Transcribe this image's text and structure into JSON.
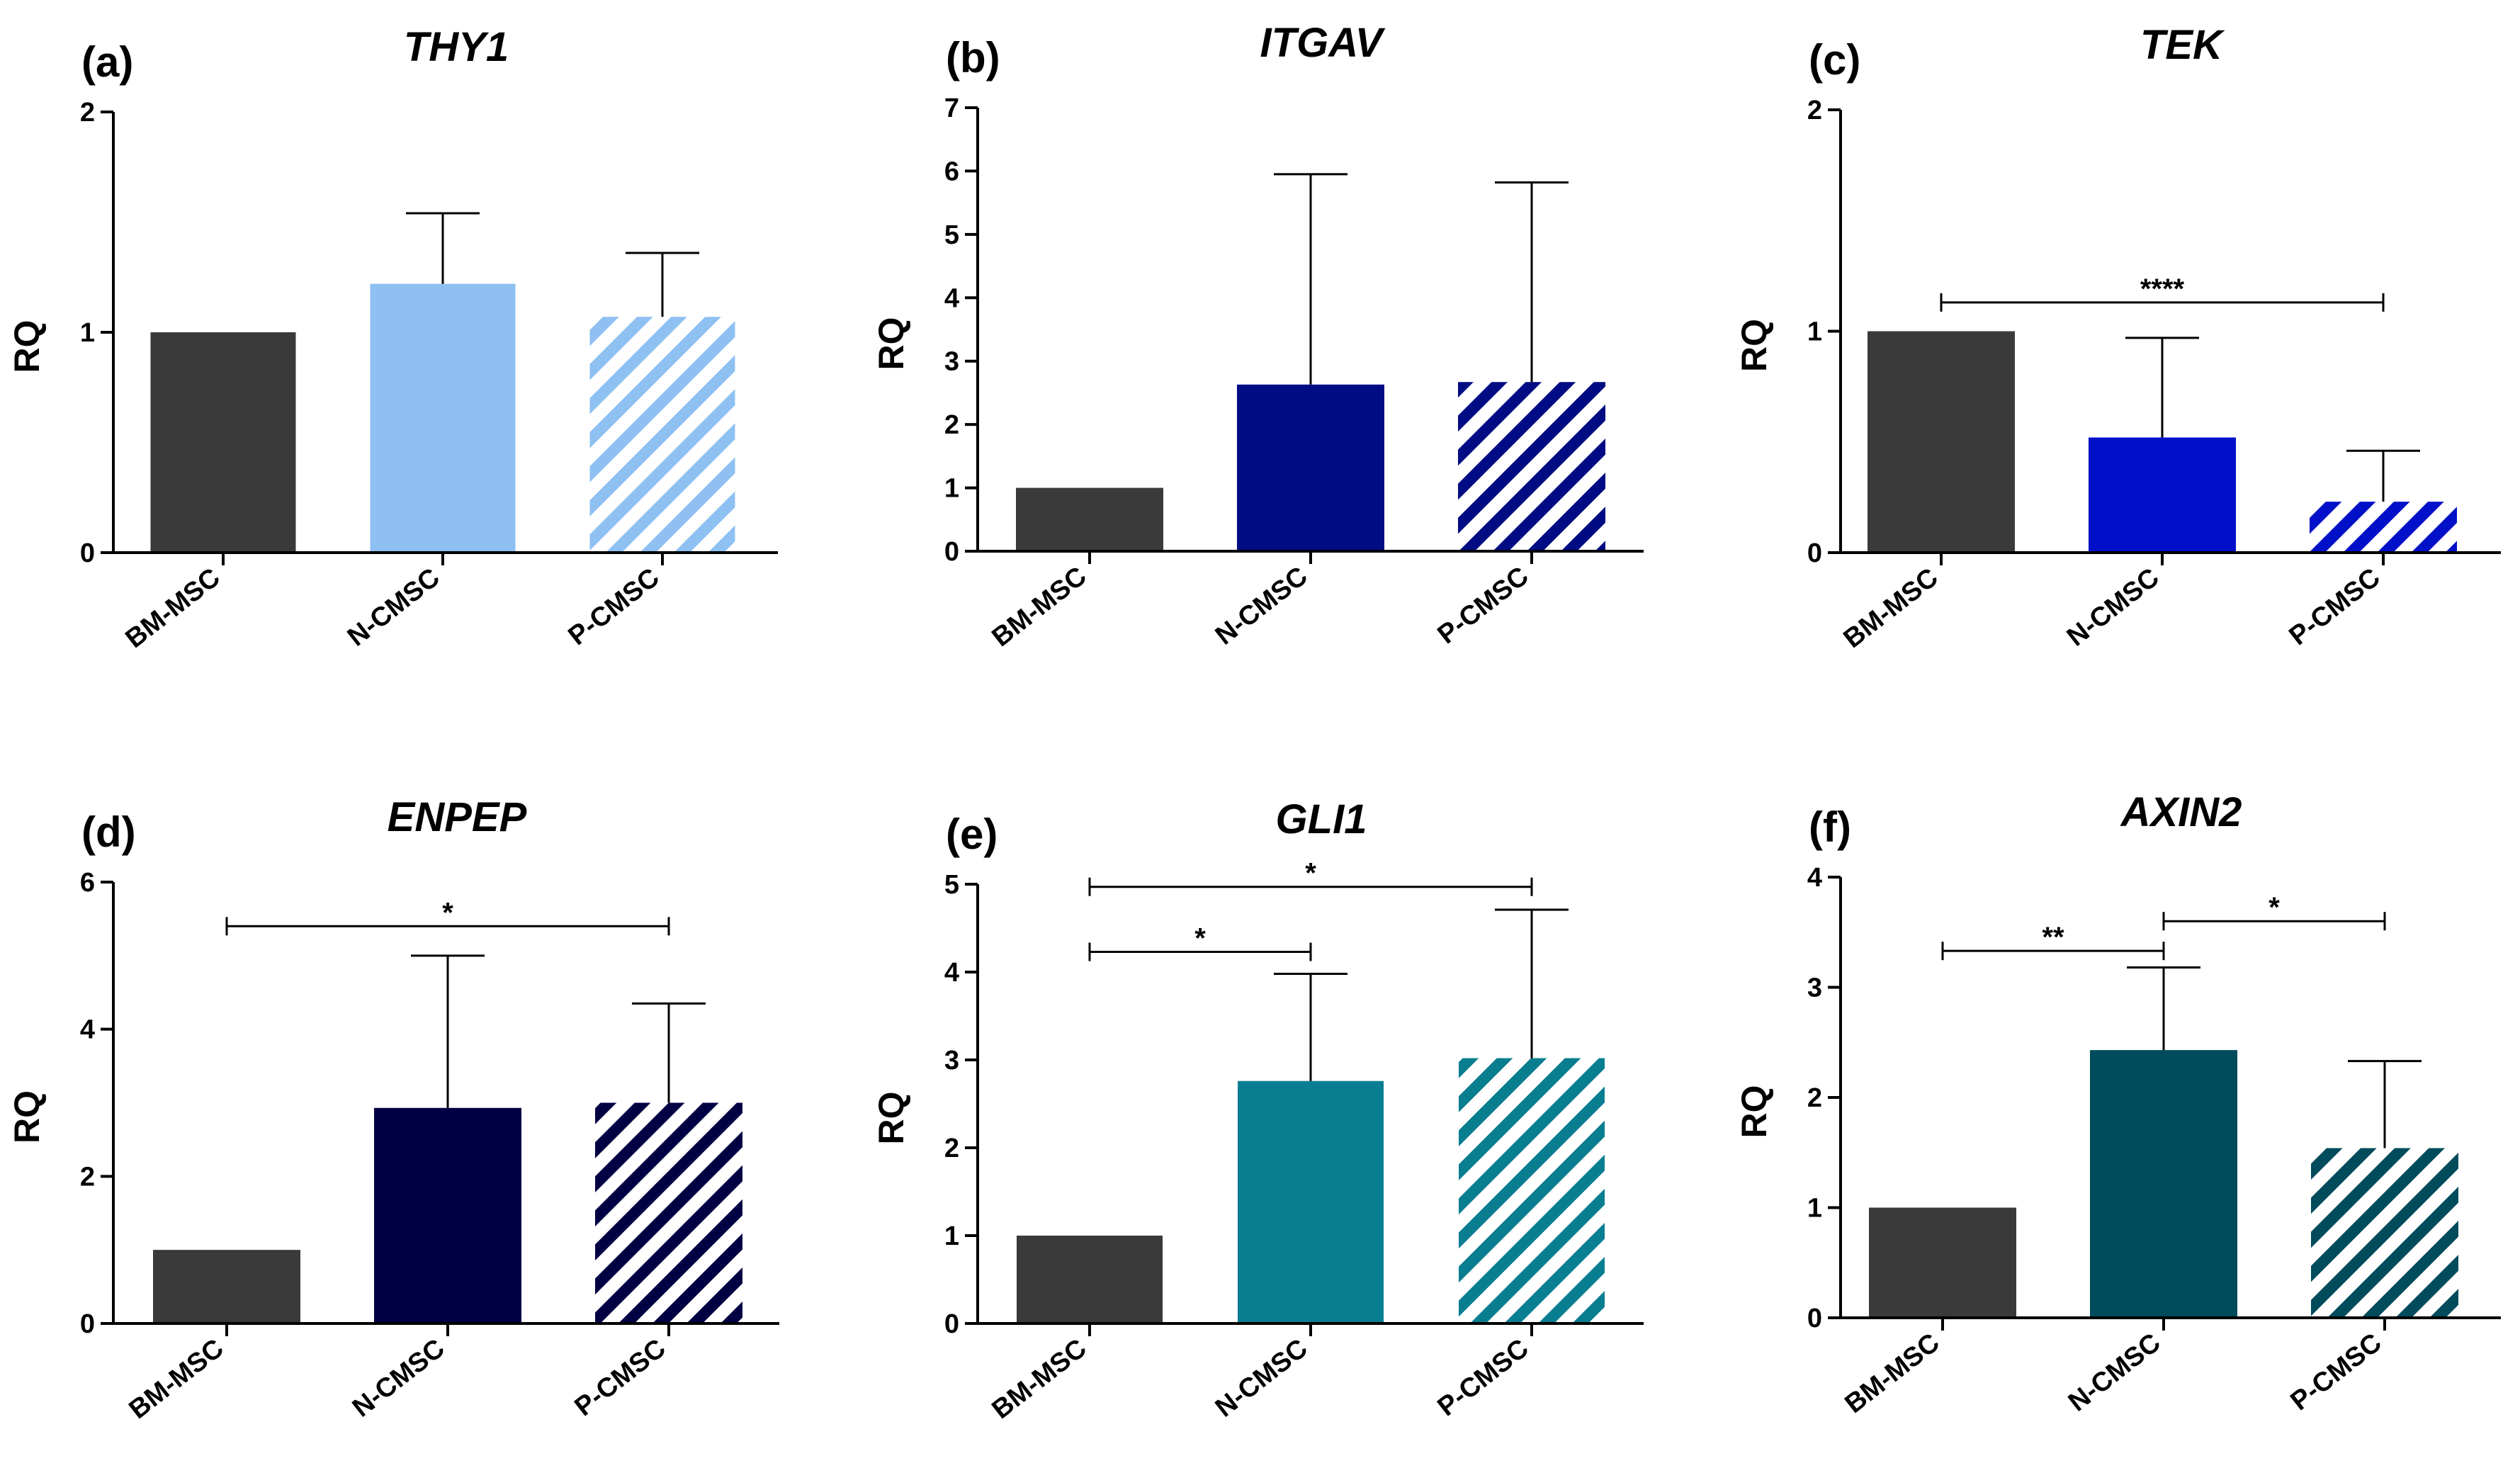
{
  "chart_data": [
    {
      "type": "bar",
      "panel": "(a)",
      "title": "THY1",
      "ylabel": "RQ",
      "ylim": [
        0,
        2
      ],
      "yticks": [
        0,
        1,
        2
      ],
      "categories": [
        "BM-MSC",
        "N-CMSC",
        "P-CMSC"
      ],
      "values": [
        1.0,
        1.22,
        1.07
      ],
      "errors": [
        0,
        0.32,
        0.29
      ],
      "colors": [
        "#3a3a3a",
        "#8ec0f2",
        "#8ec0f2"
      ],
      "patterns": [
        "solid",
        "solid",
        "stripe"
      ],
      "significance": []
    },
    {
      "type": "bar",
      "panel": "(b)",
      "title": "ITGAV",
      "ylabel": "RQ",
      "ylim": [
        0,
        7
      ],
      "yticks": [
        0,
        1,
        2,
        3,
        4,
        5,
        6,
        7
      ],
      "categories": [
        "BM-MSC",
        "N-CMSC",
        "P-CMSC"
      ],
      "values": [
        1.0,
        2.63,
        2.67
      ],
      "errors": [
        0,
        3.32,
        3.15
      ],
      "colors": [
        "#3a3a3a",
        "#000c84",
        "#000c84"
      ],
      "patterns": [
        "solid",
        "solid",
        "stripe"
      ],
      "significance": []
    },
    {
      "type": "bar",
      "panel": "(c)",
      "title": "TEK",
      "ylabel": "RQ",
      "ylim": [
        0,
        2
      ],
      "yticks": [
        0,
        1,
        2
      ],
      "categories": [
        "BM-MSC",
        "N-CMSC",
        "P-CMSC"
      ],
      "values": [
        1.0,
        0.52,
        0.23
      ],
      "errors": [
        0,
        0.45,
        0.23
      ],
      "colors": [
        "#3a3a3a",
        "#0010c8",
        "#0010c8"
      ],
      "patterns": [
        "solid",
        "solid",
        "stripe"
      ],
      "significance": [
        {
          "from": 0,
          "to": 2,
          "y": 1.13,
          "label": "****"
        }
      ]
    },
    {
      "type": "bar",
      "panel": "(d)",
      "title": "ENPEP",
      "ylabel": "RQ",
      "ylim": [
        0,
        6
      ],
      "yticks": [
        0,
        2,
        4,
        6
      ],
      "categories": [
        "BM-MSC",
        "N-CMSC",
        "P-CMSC"
      ],
      "values": [
        1.0,
        2.93,
        3.0
      ],
      "errors": [
        0,
        2.07,
        1.35
      ],
      "colors": [
        "#3a3a3a",
        "#000042",
        "#000042"
      ],
      "patterns": [
        "solid",
        "solid",
        "stripe"
      ],
      "significance": [
        {
          "from": 0,
          "to": 2,
          "y": 5.4,
          "label": "*"
        }
      ]
    },
    {
      "type": "bar",
      "panel": "(e)",
      "title": "GLI1",
      "ylabel": "RQ",
      "ylim": [
        0,
        5
      ],
      "yticks": [
        0,
        1,
        2,
        3,
        4,
        5
      ],
      "categories": [
        "BM-MSC",
        "N-CMSC",
        "P-CMSC"
      ],
      "values": [
        1.0,
        2.76,
        3.02
      ],
      "errors": [
        0,
        1.22,
        1.69
      ],
      "colors": [
        "#3a3a3a",
        "#0a7e91",
        "#0a7e91"
      ],
      "patterns": [
        "solid",
        "solid",
        "stripe"
      ],
      "significance": [
        {
          "from": 0,
          "to": 1,
          "y": 4.23,
          "label": "*"
        },
        {
          "from": 0,
          "to": 2,
          "y": 4.97,
          "label": "*"
        }
      ]
    },
    {
      "type": "bar",
      "panel": "(f)",
      "title": "AXIN2",
      "ylabel": "RQ",
      "ylim": [
        0,
        4
      ],
      "yticks": [
        0,
        1,
        2,
        3,
        4
      ],
      "categories": [
        "BM-MSC",
        "N-CMSC",
        "P-CMSC"
      ],
      "values": [
        1.0,
        2.43,
        1.54
      ],
      "errors": [
        0,
        0.75,
        0.79
      ],
      "colors": [
        "#3a3a3a",
        "#004b5c",
        "#004b5c"
      ],
      "patterns": [
        "solid",
        "solid",
        "stripe"
      ],
      "significance": [
        {
          "from": 0,
          "to": 1,
          "y": 3.33,
          "label": "**"
        },
        {
          "from": 1,
          "to": 2,
          "y": 3.6,
          "label": "*"
        }
      ]
    }
  ]
}
